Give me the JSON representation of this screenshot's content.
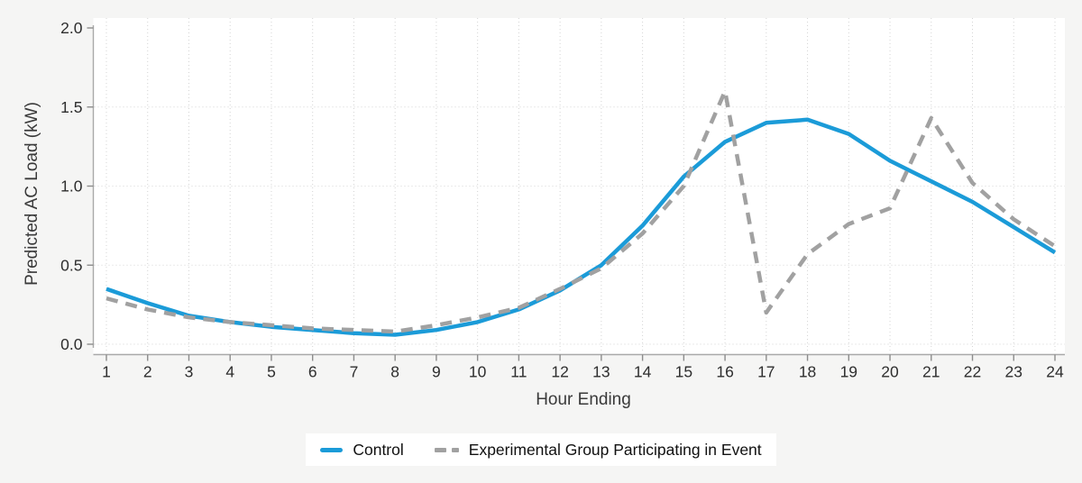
{
  "chart_data": {
    "type": "line",
    "title": "",
    "xlabel": "Hour Ending",
    "ylabel": "Predicted AC Load (kW)",
    "x": [
      1,
      2,
      3,
      4,
      5,
      6,
      7,
      8,
      9,
      10,
      11,
      12,
      13,
      14,
      15,
      16,
      17,
      18,
      19,
      20,
      21,
      22,
      23,
      24
    ],
    "xlim": [
      1,
      24
    ],
    "ylim": [
      0,
      2
    ],
    "yticks": [
      0.0,
      0.5,
      1.0,
      1.5,
      2.0
    ],
    "ytick_labels": [
      "0.0",
      "0.5",
      "1.0",
      "1.5",
      "2.0"
    ],
    "grid": "dotted vertical at every hour, dotted horizontal at 0.0/0.5/1.0/1.5",
    "legend_position": "bottom-center",
    "plot_background": "#ffffff",
    "page_background": "#f5f5f4",
    "gridline_color": "#d4d4d4",
    "axis_line_color": "#a9a9a9",
    "series": [
      {
        "name": "Control",
        "color": "#1b9bd8",
        "style": "solid",
        "values": [
          0.35,
          0.26,
          0.18,
          0.14,
          0.11,
          0.09,
          0.07,
          0.06,
          0.09,
          0.14,
          0.22,
          0.34,
          0.5,
          0.75,
          1.06,
          1.28,
          1.4,
          1.42,
          1.33,
          1.16,
          1.03,
          0.9,
          0.74,
          0.58
        ]
      },
      {
        "name": "Experimental Group Participating in Event",
        "color": "#a1a1a1",
        "style": "dashed",
        "values": [
          0.29,
          0.22,
          0.17,
          0.14,
          0.12,
          0.1,
          0.09,
          0.08,
          0.12,
          0.17,
          0.23,
          0.35,
          0.48,
          0.7,
          1.0,
          1.6,
          0.2,
          0.57,
          0.76,
          0.86,
          1.43,
          1.02,
          0.79,
          0.62
        ]
      }
    ]
  }
}
